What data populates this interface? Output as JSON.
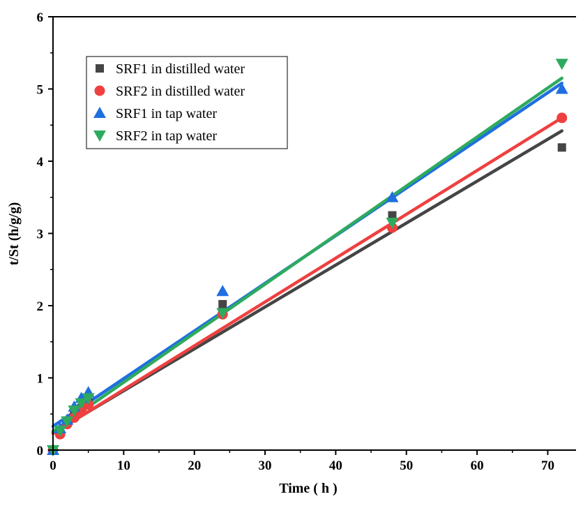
{
  "chart_data": {
    "type": "scatter",
    "xlabel": "Time ( h )",
    "ylabel": "t/St (h/g/g)",
    "xlim": [
      0,
      74
    ],
    "ylim": [
      0,
      6
    ],
    "xticks": [
      0,
      10,
      20,
      30,
      40,
      50,
      60,
      70
    ],
    "yticks": [
      0,
      1,
      2,
      3,
      4,
      5,
      6
    ],
    "grid": false,
    "legend_position": "top-left",
    "series": [
      {
        "name": "SRF1 in distilled water",
        "marker": "square",
        "color": "#454545",
        "x": [
          0,
          1,
          2,
          3,
          4,
          5,
          24,
          48,
          72
        ],
        "y": [
          0.0,
          0.25,
          0.38,
          0.48,
          0.58,
          0.66,
          2.02,
          3.25,
          4.19
        ],
        "fit": {
          "x": [
            0,
            72
          ],
          "y": [
            0.24,
            4.42
          ]
        }
      },
      {
        "name": "SRF2 in distilled water",
        "marker": "circle",
        "color": "#ef4040",
        "x": [
          0,
          1,
          2,
          3,
          4,
          5,
          24,
          48,
          72
        ],
        "y": [
          0.0,
          0.22,
          0.36,
          0.45,
          0.55,
          0.63,
          1.88,
          3.08,
          4.6
        ],
        "fit": {
          "x": [
            0,
            72
          ],
          "y": [
            0.23,
            4.6
          ]
        }
      },
      {
        "name": "SRF1 in tap water",
        "marker": "triangle-up",
        "color": "#1f6fe0",
        "x": [
          0,
          1,
          2,
          3,
          4,
          5,
          24,
          48,
          72
        ],
        "y": [
          0.0,
          0.3,
          0.42,
          0.6,
          0.72,
          0.8,
          2.2,
          3.5,
          5.0
        ],
        "fit": {
          "x": [
            0,
            72
          ],
          "y": [
            0.33,
            5.08
          ]
        }
      },
      {
        "name": "SRF2 in tap water",
        "marker": "triangle-down",
        "color": "#2eaa5e",
        "x": [
          0,
          1,
          2,
          3,
          4,
          5,
          24,
          48,
          72
        ],
        "y": [
          0.0,
          0.27,
          0.4,
          0.55,
          0.65,
          0.72,
          1.9,
          3.15,
          5.35
        ],
        "fit": {
          "x": [
            0,
            72
          ],
          "y": [
            0.26,
            5.15
          ]
        }
      }
    ]
  }
}
